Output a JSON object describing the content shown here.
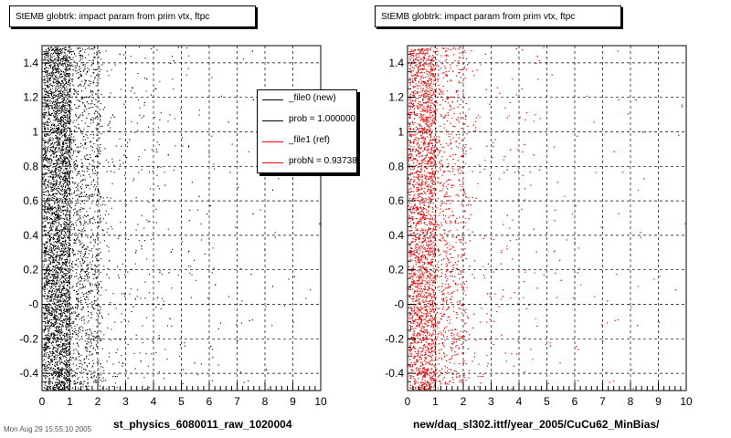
{
  "panels": [
    {
      "title": "StEMB globtrk: impact param from prim vtx, ftpc",
      "x_title": "st_physics_6080011_raw_1020004",
      "color": "#000000"
    },
    {
      "title": "StEMB globtrk: impact param from prim vtx, ftpc",
      "x_title": "new/daq_sl302.ittf/year_2005/CuCu62_MinBias/",
      "color": "#ff0000"
    }
  ],
  "legend": {
    "entries": [
      {
        "label": "_file0 (new)",
        "color": "#000000"
      },
      {
        "label": "prob = 1.000000",
        "color": "#000000"
      },
      {
        "label": "_file1 (ref)",
        "color": "#ff0000"
      },
      {
        "label": "probN = 0.93738",
        "color": "#ff0000"
      }
    ]
  },
  "footer_stamp": "Mon Aug 29 15:55:10 2005",
  "chart_data": [
    {
      "type": "scatter",
      "title": "StEMB globtrk: impact param from prim vtx, ftpc",
      "xlabel": "st_physics_6080011_raw_1020004",
      "ylabel": "",
      "xlim": [
        0,
        10
      ],
      "ylim": [
        -0.5,
        1.5
      ],
      "x_ticks": [
        "0",
        "1",
        "2",
        "3",
        "4",
        "5",
        "6",
        "7",
        "8",
        "9",
        "10"
      ],
      "y_ticks": [
        "-0.4",
        "-0.2",
        "-0",
        "0.2",
        "0.4",
        "0.6",
        "0.8",
        "1",
        "1.2",
        "1.4"
      ],
      "grid": true,
      "series": [
        {
          "name": "_file0 (new)",
          "color": "#000000",
          "description": "dense near x=0-1, decaying toward x=10, uniform in y"
        }
      ]
    },
    {
      "type": "scatter",
      "title": "StEMB globtrk: impact param from prim vtx, ftpc",
      "xlabel": "new/daq_sl302.ittf/year_2005/CuCu62_MinBias/",
      "ylabel": "",
      "xlim": [
        0,
        10
      ],
      "ylim": [
        -0.5,
        1.5
      ],
      "x_ticks": [
        "0",
        "1",
        "2",
        "3",
        "4",
        "5",
        "6",
        "7",
        "8",
        "9",
        "10"
      ],
      "y_ticks": [
        "-0.4",
        "-0.2",
        "-0",
        "0.2",
        "0.4",
        "0.6",
        "0.8",
        "1",
        "1.2",
        "1.4"
      ],
      "grid": true,
      "series": [
        {
          "name": "_file1 (ref)",
          "color": "#ff0000",
          "description": "dense near x=0-1, decaying toward x=10, uniform in y"
        }
      ]
    }
  ]
}
